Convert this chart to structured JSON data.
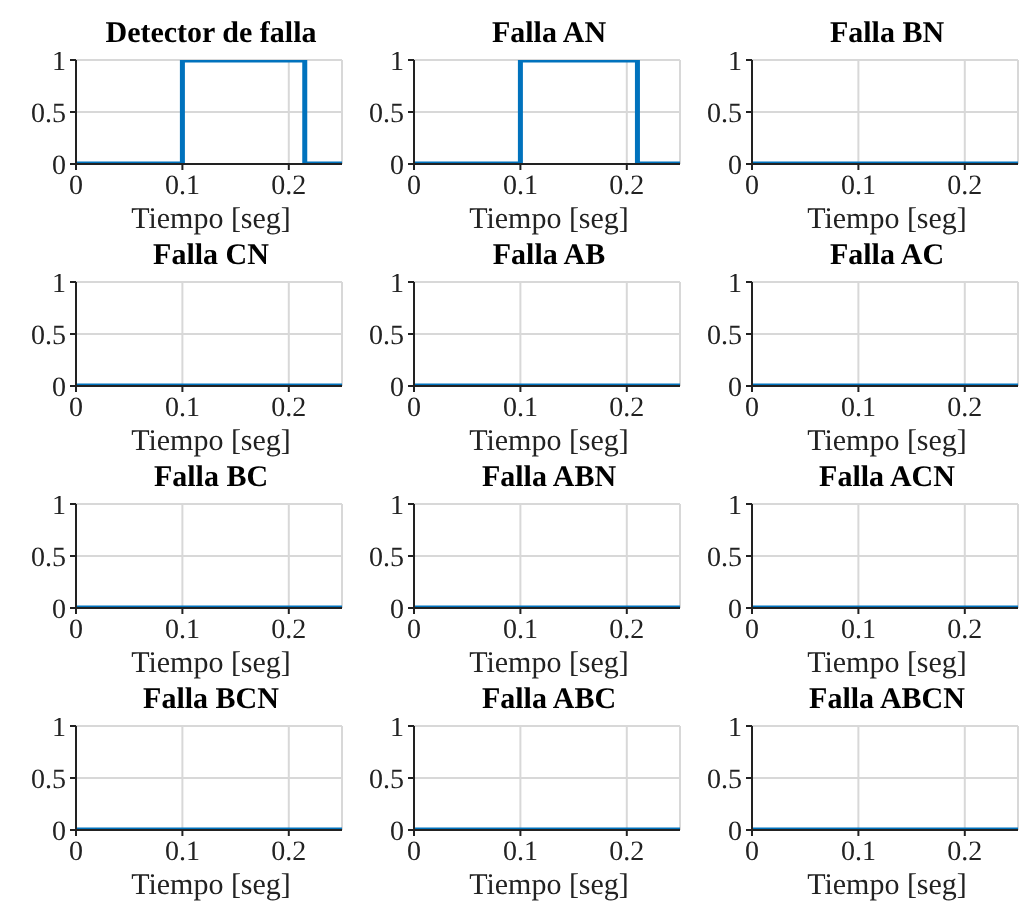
{
  "chart_data": [
    {
      "type": "step",
      "title": "Detector de falla",
      "xlabel": "Tiempo [seg]",
      "x": [
        0,
        0.1,
        0.215,
        0.25
      ],
      "values": [
        0,
        1,
        0,
        0
      ],
      "color": "#0072bd",
      "xlim": [
        0,
        0.25
      ],
      "xticks": [
        0,
        0.1,
        0.2
      ],
      "ylim": [
        0,
        1
      ],
      "yticks": [
        0,
        0.5,
        1
      ],
      "grid": true
    },
    {
      "type": "step",
      "title": "Falla AN",
      "xlabel": "Tiempo [seg]",
      "x": [
        0,
        0.1,
        0.21,
        0.25
      ],
      "values": [
        0,
        1,
        0,
        0
      ],
      "color": "#0072bd",
      "xlim": [
        0,
        0.25
      ],
      "xticks": [
        0,
        0.1,
        0.2
      ],
      "ylim": [
        0,
        1
      ],
      "yticks": [
        0,
        0.5,
        1
      ],
      "grid": true
    },
    {
      "type": "step",
      "title": "Falla BN",
      "xlabel": "Tiempo [seg]",
      "x": [
        0,
        0.25
      ],
      "values": [
        0,
        0
      ],
      "color": "#0072bd",
      "xlim": [
        0,
        0.25
      ],
      "xticks": [
        0,
        0.1,
        0.2
      ],
      "ylim": [
        0,
        1
      ],
      "yticks": [
        0,
        0.5,
        1
      ],
      "grid": true
    },
    {
      "type": "step",
      "title": "Falla CN",
      "xlabel": "Tiempo [seg]",
      "x": [
        0,
        0.25
      ],
      "values": [
        0,
        0
      ],
      "color": "#0072bd",
      "xlim": [
        0,
        0.25
      ],
      "xticks": [
        0,
        0.1,
        0.2
      ],
      "ylim": [
        0,
        1
      ],
      "yticks": [
        0,
        0.5,
        1
      ],
      "grid": true
    },
    {
      "type": "step",
      "title": "Falla AB",
      "xlabel": "Tiempo [seg]",
      "x": [
        0,
        0.25
      ],
      "values": [
        0,
        0
      ],
      "color": "#0072bd",
      "xlim": [
        0,
        0.25
      ],
      "xticks": [
        0,
        0.1,
        0.2
      ],
      "ylim": [
        0,
        1
      ],
      "yticks": [
        0,
        0.5,
        1
      ],
      "grid": true
    },
    {
      "type": "step",
      "title": "Falla AC",
      "xlabel": "Tiempo [seg]",
      "x": [
        0,
        0.25
      ],
      "values": [
        0,
        0
      ],
      "color": "#0072bd",
      "xlim": [
        0,
        0.25
      ],
      "xticks": [
        0,
        0.1,
        0.2
      ],
      "ylim": [
        0,
        1
      ],
      "yticks": [
        0,
        0.5,
        1
      ],
      "grid": true
    },
    {
      "type": "step",
      "title": "Falla BC",
      "xlabel": "Tiempo [seg]",
      "x": [
        0,
        0.25
      ],
      "values": [
        0,
        0
      ],
      "color": "#0072bd",
      "xlim": [
        0,
        0.25
      ],
      "xticks": [
        0,
        0.1,
        0.2
      ],
      "ylim": [
        0,
        1
      ],
      "yticks": [
        0,
        0.5,
        1
      ],
      "grid": true
    },
    {
      "type": "step",
      "title": "Falla ABN",
      "xlabel": "Tiempo [seg]",
      "x": [
        0,
        0.25
      ],
      "values": [
        0,
        0
      ],
      "color": "#0072bd",
      "xlim": [
        0,
        0.25
      ],
      "xticks": [
        0,
        0.1,
        0.2
      ],
      "ylim": [
        0,
        1
      ],
      "yticks": [
        0,
        0.5,
        1
      ],
      "grid": true
    },
    {
      "type": "step",
      "title": "Falla ACN",
      "xlabel": "Tiempo [seg]",
      "x": [
        0,
        0.25
      ],
      "values": [
        0,
        0
      ],
      "color": "#0072bd",
      "xlim": [
        0,
        0.25
      ],
      "xticks": [
        0,
        0.1,
        0.2
      ],
      "ylim": [
        0,
        1
      ],
      "yticks": [
        0,
        0.5,
        1
      ],
      "grid": true
    },
    {
      "type": "step",
      "title": "Falla BCN",
      "xlabel": "Tiempo [seg]",
      "x": [
        0,
        0.25
      ],
      "values": [
        0,
        0
      ],
      "color": "#0072bd",
      "xlim": [
        0,
        0.25
      ],
      "xticks": [
        0,
        0.1,
        0.2
      ],
      "ylim": [
        0,
        1
      ],
      "yticks": [
        0,
        0.5,
        1
      ],
      "grid": true
    },
    {
      "type": "step",
      "title": "Falla ABC",
      "xlabel": "Tiempo [seg]",
      "x": [
        0,
        0.25
      ],
      "values": [
        0,
        0
      ],
      "color": "#0072bd",
      "xlim": [
        0,
        0.25
      ],
      "xticks": [
        0,
        0.1,
        0.2
      ],
      "ylim": [
        0,
        1
      ],
      "yticks": [
        0,
        0.5,
        1
      ],
      "grid": true
    },
    {
      "type": "step",
      "title": "Falla ABCN",
      "xlabel": "Tiempo [seg]",
      "x": [
        0,
        0.25
      ],
      "values": [
        0,
        0
      ],
      "color": "#0072bd",
      "xlim": [
        0,
        0.25
      ],
      "xticks": [
        0,
        0.1,
        0.2
      ],
      "ylim": [
        0,
        1
      ],
      "yticks": [
        0,
        0.5,
        1
      ],
      "grid": true
    }
  ]
}
